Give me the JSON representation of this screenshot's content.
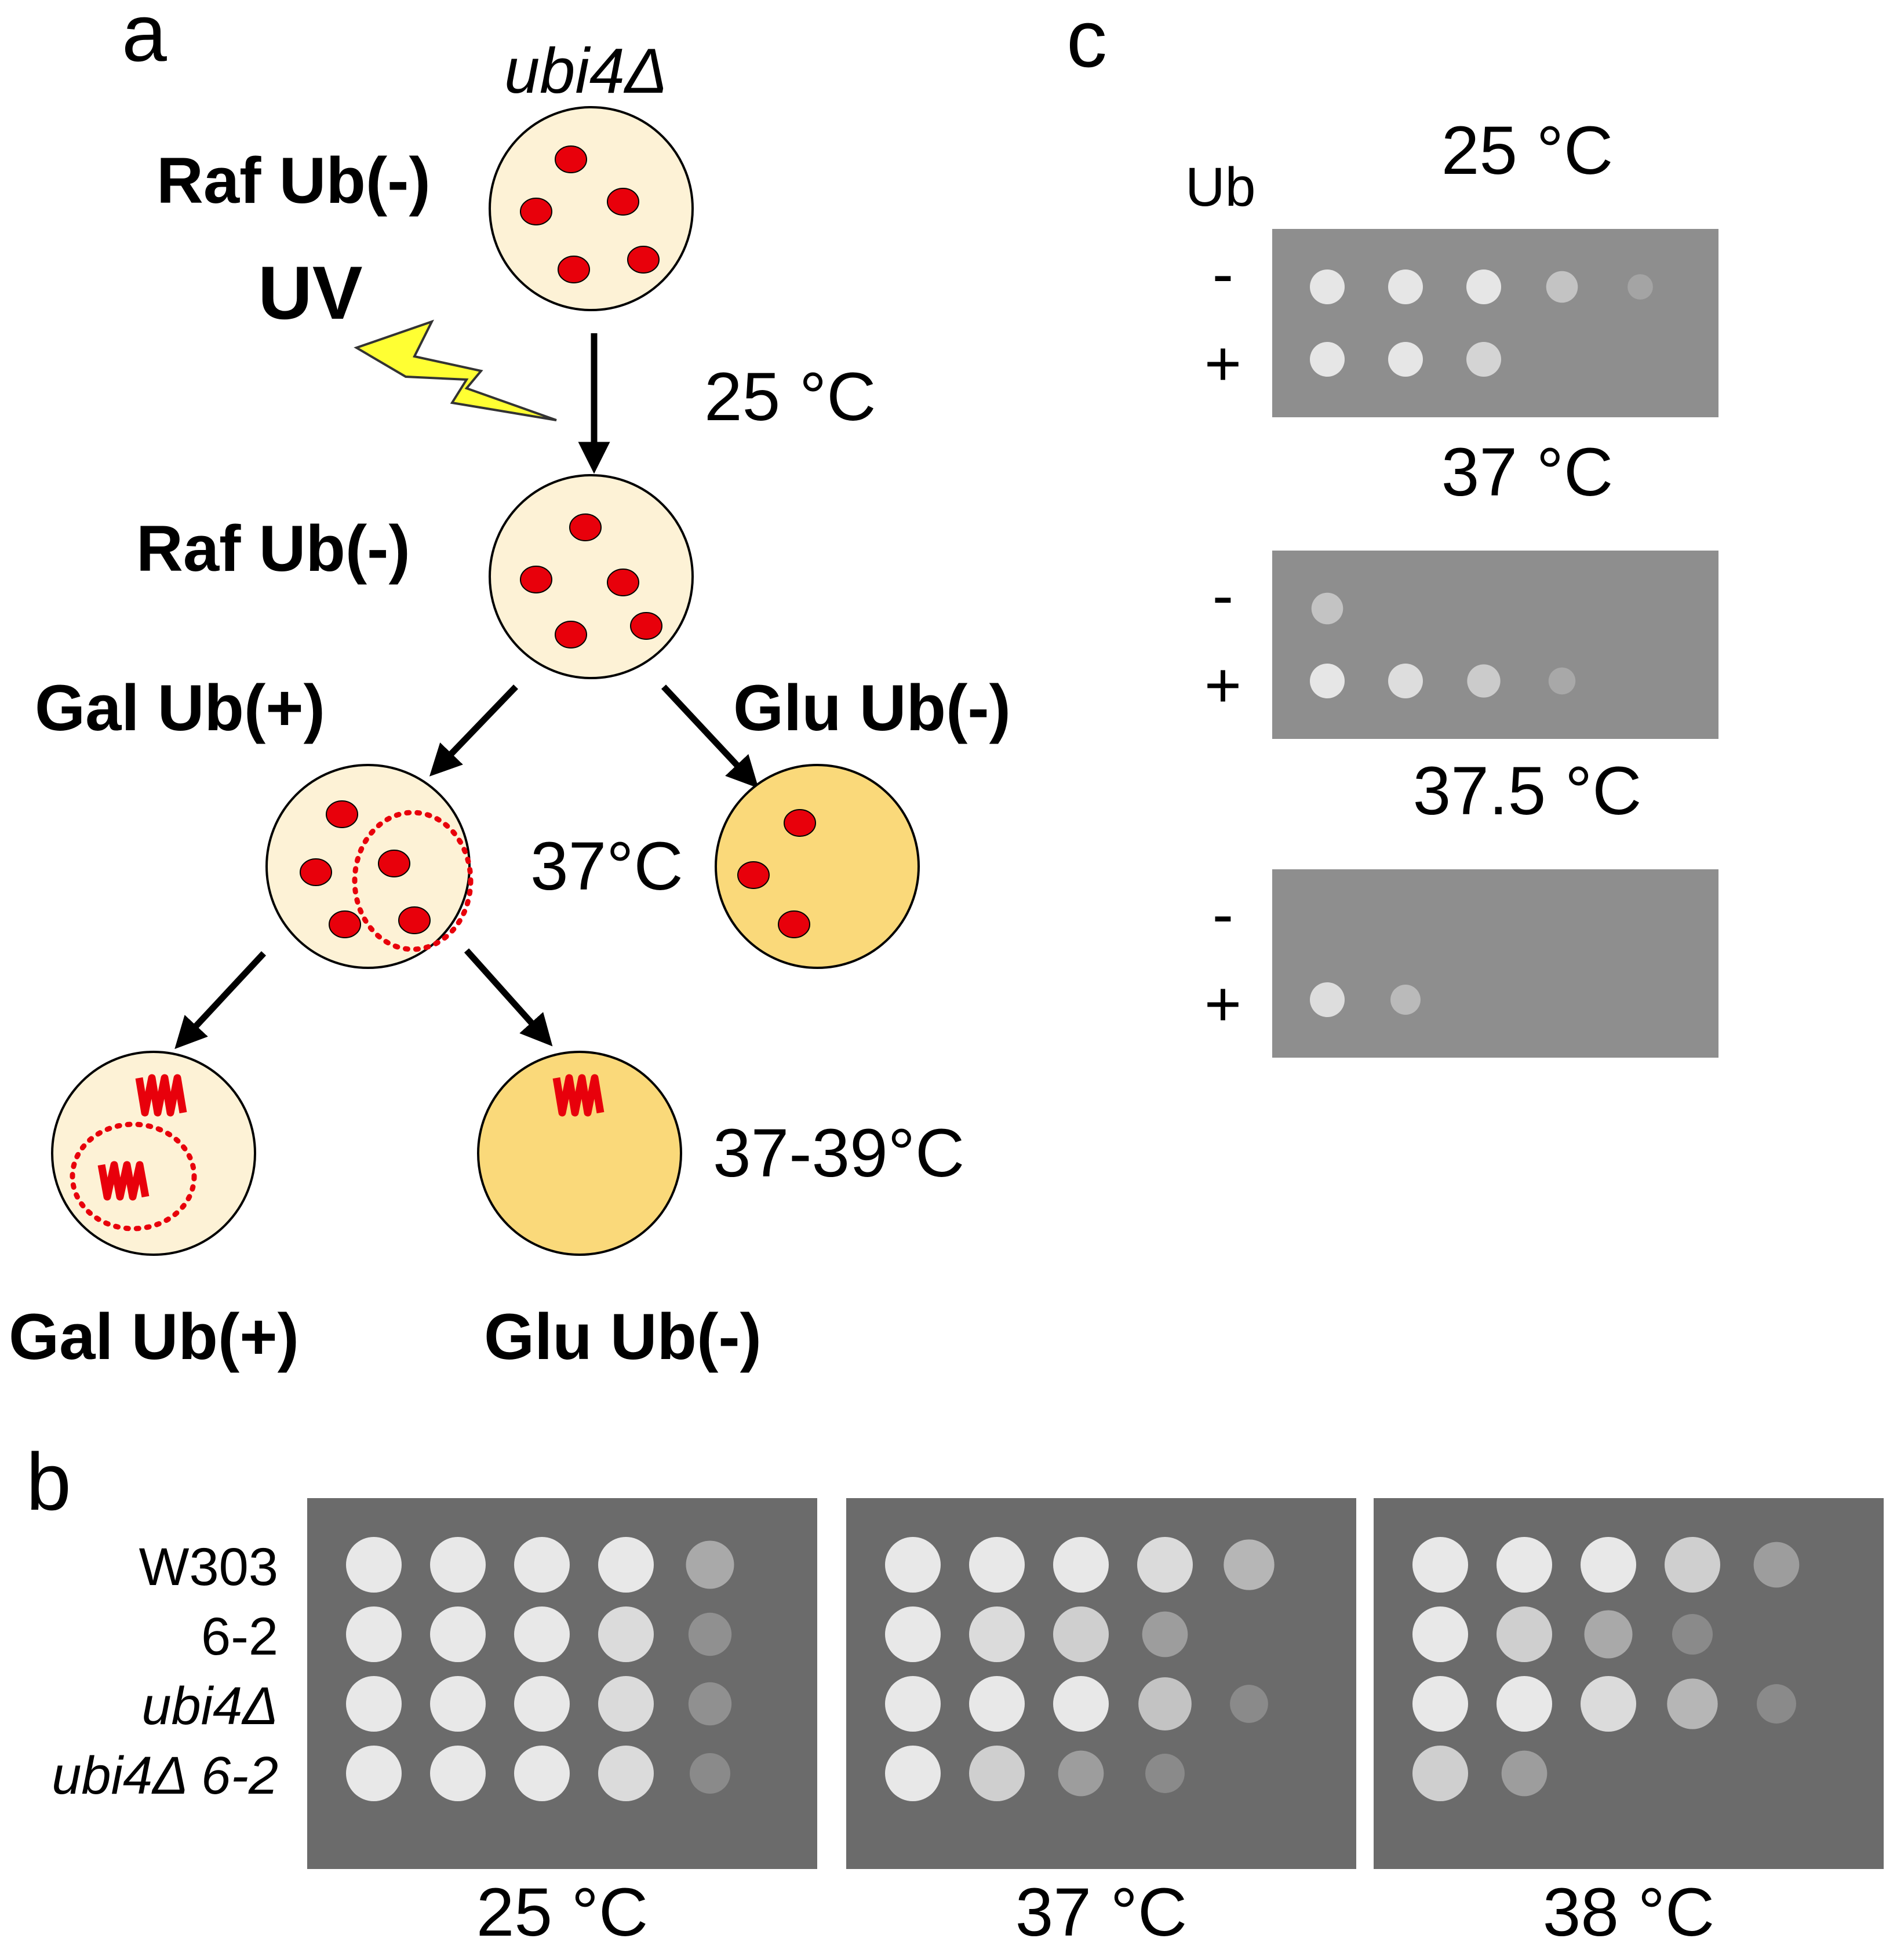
{
  "panel_a": {
    "letter": "a",
    "strain": "ubi4Δ",
    "uv": "UV",
    "plate1_label": "Raf Ub(-)",
    "temp1": "25 °C",
    "plate2_label": "Raf Ub(-)",
    "gal_label": "Gal Ub(+)",
    "glu_label": "Glu Ub(-)",
    "temp2": "37°C",
    "temp3": "37-39°C",
    "bottom_gal": "Gal Ub(+)",
    "bottom_glu": "Glu Ub(-)"
  },
  "panel_b": {
    "letter": "b",
    "strains": [
      "W303",
      "6-2",
      "ubi4Δ",
      "ubi4Δ 6-2"
    ],
    "temps": [
      "25 °C",
      "37 °C",
      "38 °C"
    ],
    "growth": [
      [
        [
          1,
          1,
          1,
          1,
          0.5
        ],
        [
          1,
          1,
          1,
          0.9,
          0.3
        ],
        [
          1,
          1,
          1,
          0.9,
          0.3
        ],
        [
          1,
          1,
          1,
          0.9,
          0.2
        ]
      ],
      [
        [
          1,
          1,
          1,
          0.9,
          0.6
        ],
        [
          1,
          0.9,
          0.8,
          0.4,
          0
        ],
        [
          1,
          1,
          1,
          0.7,
          0.1
        ],
        [
          1,
          0.8,
          0.4,
          0.15,
          0
        ]
      ],
      [
        [
          1,
          1,
          1,
          0.8,
          0.4
        ],
        [
          1,
          0.8,
          0.5,
          0.2,
          0
        ],
        [
          1,
          1,
          0.9,
          0.6,
          0.15
        ],
        [
          0.8,
          0.4,
          0,
          0,
          0
        ]
      ]
    ],
    "colors": {
      "plate": "#6b6b6b",
      "spot": "#e8e8e8"
    }
  },
  "panel_c": {
    "letter": "c",
    "ub_header": "Ub",
    "plates": [
      {
        "temp": "25 °C",
        "minus": "-",
        "plus": "+",
        "growth_minus": [
          1,
          1,
          1,
          0.6,
          0.2
        ],
        "growth_plus": [
          1,
          1,
          0.8,
          0,
          0
        ]
      },
      {
        "temp": "37 °C",
        "minus": "-",
        "plus": "+",
        "growth_minus": [
          0.6,
          0,
          0,
          0,
          0
        ],
        "growth_plus": [
          1,
          0.9,
          0.7,
          0.3,
          0
        ]
      },
      {
        "temp": "37.5 °C",
        "minus": "-",
        "plus": "+",
        "growth_minus": [
          0,
          0,
          0,
          0,
          0
        ],
        "growth_plus": [
          0.9,
          0.5,
          0,
          0,
          0
        ]
      }
    ],
    "colors": {
      "plate": "#8e8e8e",
      "spot": "#e6e6e6"
    }
  },
  "colors": {
    "plate_fill": "#fdf2d6",
    "plate_fill_glu": "#fad97a",
    "colony": "#e8000b",
    "arrow": "#000000",
    "bolt": "#ffff33"
  }
}
